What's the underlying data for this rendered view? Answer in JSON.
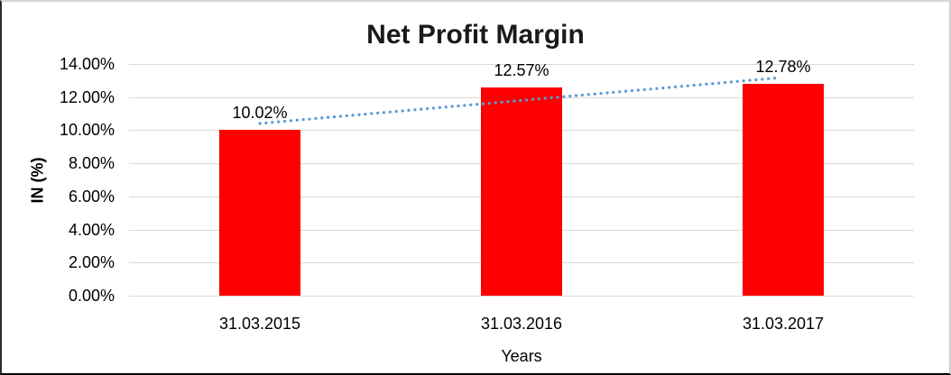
{
  "chart_data": {
    "type": "bar",
    "title": "Net Profit Margin",
    "xlabel": "Years",
    "ylabel": "IN (%)",
    "categories": [
      "31.03.2015",
      "31.03.2016",
      "31.03.2017"
    ],
    "values": [
      10.02,
      12.57,
      12.78
    ],
    "data_labels": [
      "10.02%",
      "12.57%",
      "12.78%"
    ],
    "y_ticks": [
      "0.00%",
      "2.00%",
      "4.00%",
      "6.00%",
      "8.00%",
      "10.00%",
      "12.00%",
      "14.00%"
    ],
    "ylim": [
      0,
      14
    ],
    "y_step": 2,
    "grid": true,
    "legend": "none",
    "bar_color": "#ff0000",
    "gridline_color": "#d9d9d9",
    "trendline": {
      "type": "linear",
      "style": "dotted",
      "color": "#5b9bd5",
      "span": "first-to-last-category"
    }
  }
}
